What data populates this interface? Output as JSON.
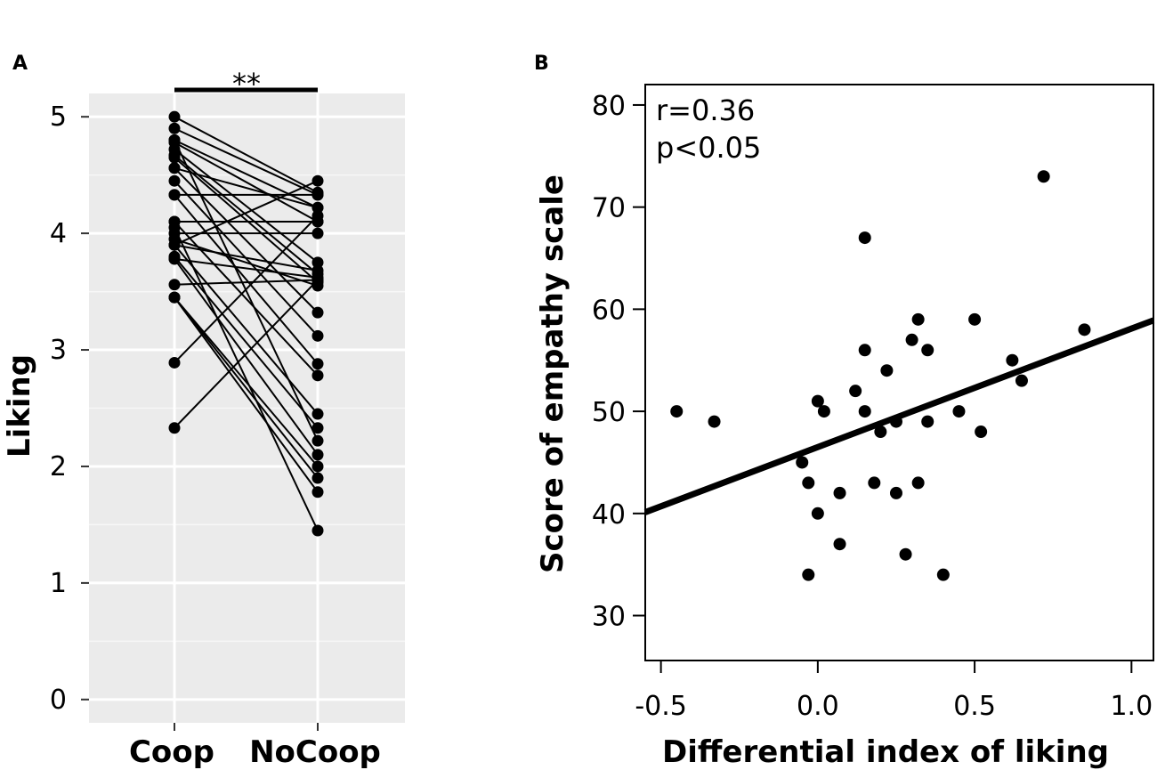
{
  "chart_data": [
    {
      "panel": "A",
      "type": "line",
      "subtype": "paired-dot",
      "ylabel": "Liking",
      "xlabel": "",
      "categories": [
        "Coop",
        "NoCoop"
      ],
      "yticks": [
        "0",
        "1",
        "2",
        "3",
        "4",
        "5"
      ],
      "ylim": [
        -0.2,
        5.2
      ],
      "significance": "**",
      "grid": true,
      "pairs": [
        [
          5.0,
          4.35
        ],
        [
          4.9,
          4.33
        ],
        [
          4.8,
          4.22
        ],
        [
          4.78,
          4.1
        ],
        [
          4.72,
          3.75
        ],
        [
          4.67,
          3.65
        ],
        [
          4.65,
          3.58
        ],
        [
          4.56,
          4.22
        ],
        [
          4.56,
          3.32
        ],
        [
          4.45,
          3.12
        ],
        [
          4.33,
          4.33
        ],
        [
          4.33,
          2.88
        ],
        [
          4.1,
          4.1
        ],
        [
          4.1,
          2.78
        ],
        [
          4.0,
          4.0
        ],
        [
          3.95,
          3.55
        ],
        [
          3.9,
          3.68
        ],
        [
          3.9,
          2.45
        ],
        [
          3.8,
          2.33
        ],
        [
          3.78,
          3.62
        ],
        [
          3.78,
          2.1
        ],
        [
          3.56,
          3.6
        ],
        [
          3.45,
          2.0
        ],
        [
          3.45,
          1.9
        ],
        [
          3.45,
          1.78
        ],
        [
          2.89,
          4.15
        ],
        [
          2.33,
          3.6
        ],
        [
          4.05,
          1.45
        ],
        [
          3.9,
          4.45
        ],
        [
          4.8,
          2.22
        ]
      ]
    },
    {
      "panel": "B",
      "type": "scatter",
      "xlabel": "Differential index of liking",
      "ylabel": "Score of empathy scale",
      "xticks": [
        "-0.5",
        "0.0",
        "0.5",
        "1.0"
      ],
      "yticks": [
        "30",
        "40",
        "50",
        "60",
        "70",
        "80"
      ],
      "xlim": [
        -0.55,
        1.07
      ],
      "ylim": [
        25.6,
        82
      ],
      "annotations": [
        "r=0.36",
        "p<0.05"
      ],
      "regression": {
        "intercept": 46.5,
        "slope": 11.6
      },
      "points": [
        [
          -0.45,
          50
        ],
        [
          -0.33,
          49
        ],
        [
          -0.05,
          45
        ],
        [
          -0.03,
          43
        ],
        [
          -0.03,
          34
        ],
        [
          0.0,
          51
        ],
        [
          0.0,
          40
        ],
        [
          0.02,
          50
        ],
        [
          0.07,
          42
        ],
        [
          0.07,
          37
        ],
        [
          0.12,
          52
        ],
        [
          0.15,
          67
        ],
        [
          0.15,
          56
        ],
        [
          0.15,
          50
        ],
        [
          0.18,
          43
        ],
        [
          0.2,
          48
        ],
        [
          0.22,
          54
        ],
        [
          0.25,
          49
        ],
        [
          0.25,
          42
        ],
        [
          0.28,
          36
        ],
        [
          0.3,
          57
        ],
        [
          0.32,
          59
        ],
        [
          0.32,
          43
        ],
        [
          0.35,
          56
        ],
        [
          0.35,
          49
        ],
        [
          0.4,
          34
        ],
        [
          0.45,
          50
        ],
        [
          0.5,
          59
        ],
        [
          0.52,
          48
        ],
        [
          0.62,
          55
        ],
        [
          0.65,
          53
        ],
        [
          0.72,
          73
        ],
        [
          0.85,
          58
        ]
      ]
    }
  ]
}
